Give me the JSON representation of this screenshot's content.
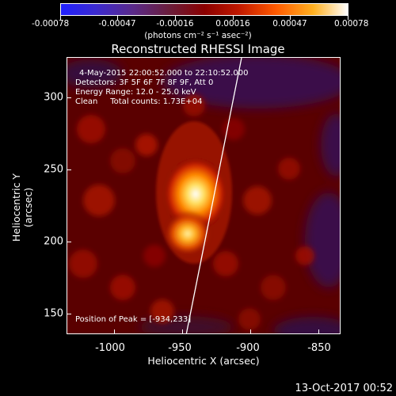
{
  "colorbar": {
    "ticks": [
      "-0.00078",
      "-0.00047",
      "-0.00016",
      "0.00016",
      "0.00047",
      "0.00078"
    ],
    "unit": "(photons cm⁻² s⁻¹ asec⁻²)"
  },
  "title": "Reconstructed RHESSI Image",
  "info": {
    "time": "4-May-2015 22:00:52.000 to 22:10:52.000",
    "detectors": "Detectors: 3F 5F 6F 7F 8F 9F, Att 0",
    "energy": "Energy Range: 12.0 - 25.0 keV",
    "clean": "Clean     Total counts: 1.73E+04",
    "peak": "Position of Peak = [-934,233]"
  },
  "axes": {
    "x_ticks": [
      "-1000",
      "-950",
      "-900",
      "-850"
    ],
    "y_ticks": [
      "300",
      "250",
      "200",
      "150"
    ],
    "xlabel": "Heliocentric X (arcsec)",
    "ylabel": "Heliocentric Y (arcsec)"
  },
  "timestamp": "13-Oct-2017 00:52"
}
